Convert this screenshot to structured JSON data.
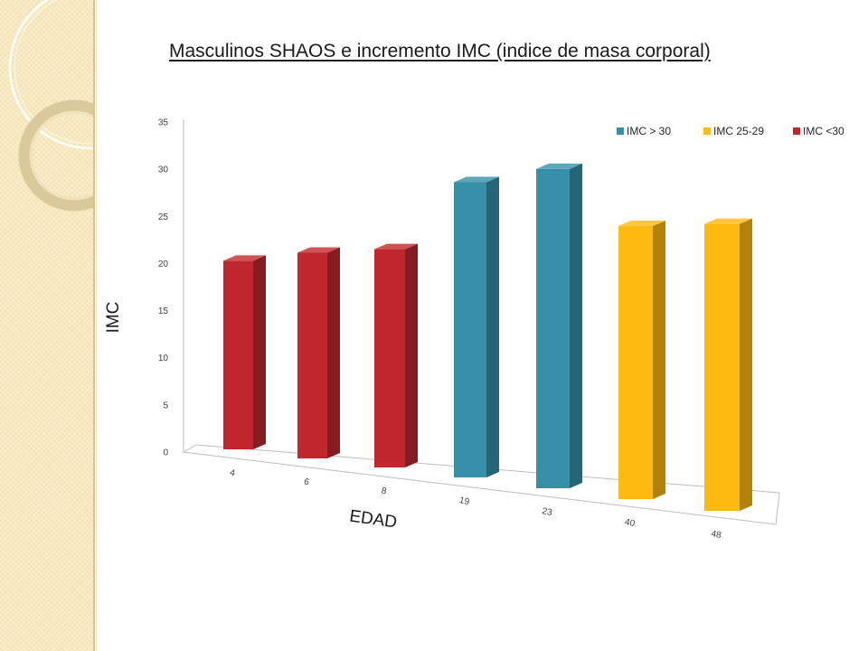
{
  "slide": {
    "title": "Masculinos SHAOS e incremento IMC (indice de masa corporal)"
  },
  "chart_data": {
    "type": "bar",
    "three_d": true,
    "categories": [
      "4",
      "6",
      "8",
      "19",
      "23",
      "40",
      "48"
    ],
    "series": [
      {
        "name": "IMC > 30",
        "color": "#3690A8",
        "values": [
          null,
          null,
          null,
          30,
          32,
          null,
          null
        ]
      },
      {
        "name": "IMC 25-29",
        "color": "#FFBA0F",
        "values": [
          null,
          null,
          null,
          null,
          null,
          27,
          28
        ]
      },
      {
        "name": "IMC <30",
        "color": "#C0282D",
        "values": [
          20,
          21.5,
          22.5,
          null,
          null,
          null,
          null
        ]
      }
    ],
    "xlabel": "EDAD",
    "ylabel": "IMC",
    "ylim": [
      0,
      35
    ],
    "yticks": [
      0,
      5,
      10,
      15,
      20,
      25,
      30,
      35
    ],
    "grid": false,
    "legend_position": "top-right"
  }
}
